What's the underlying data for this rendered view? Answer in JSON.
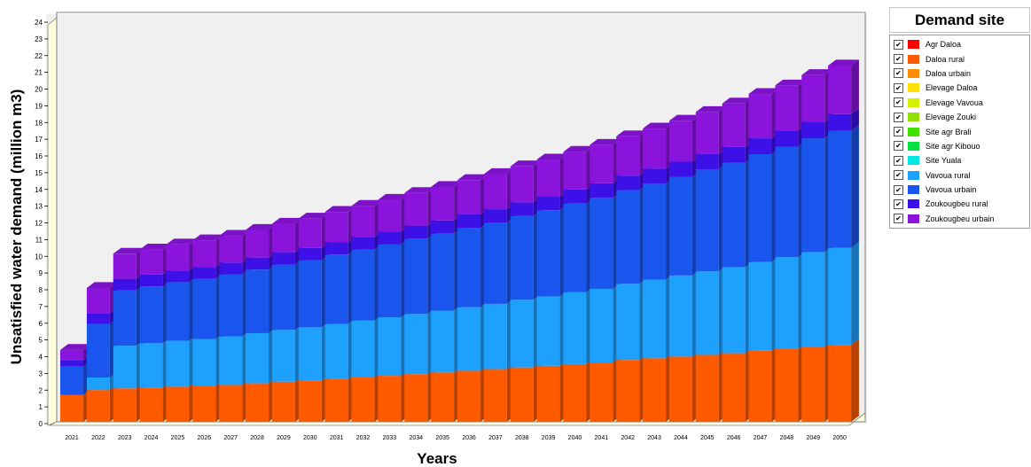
{
  "chart_data": {
    "type": "bar",
    "stacked": true,
    "three_d": true,
    "title": "",
    "xlabel": "Years",
    "ylabel": "Unsatisfied water demand (million m3)",
    "ylim": [
      0,
      24
    ],
    "yticks": [
      0,
      1,
      2,
      3,
      4,
      5,
      6,
      7,
      8,
      9,
      10,
      11,
      12,
      13,
      14,
      15,
      16,
      17,
      18,
      19,
      20,
      21,
      22,
      23,
      24
    ],
    "grid": false,
    "legend_title": "Demand site",
    "legend_position": "right",
    "categories": [
      "2021",
      "2022",
      "2023",
      "2024",
      "2025",
      "2026",
      "2027",
      "2028",
      "2029",
      "2030",
      "2031",
      "2032",
      "2033",
      "2034",
      "2035",
      "2036",
      "2037",
      "2038",
      "2039",
      "2040",
      "2041",
      "2042",
      "2043",
      "2044",
      "2045",
      "2046",
      "2047",
      "2048",
      "2049",
      "2050"
    ],
    "series": [
      {
        "name": "Agr Daloa",
        "color": "#ff0000",
        "values": [
          0,
          0,
          0,
          0,
          0,
          0,
          0,
          0,
          0,
          0,
          0,
          0,
          0,
          0,
          0,
          0,
          0,
          0,
          0,
          0,
          0,
          0,
          0,
          0,
          0,
          0,
          0,
          0,
          0,
          0
        ]
      },
      {
        "name": "Daloa rural",
        "color": "#ff5a00",
        "values": [
          1.6,
          1.9,
          2.0,
          2.05,
          2.1,
          2.15,
          2.2,
          2.3,
          2.4,
          2.45,
          2.55,
          2.65,
          2.75,
          2.85,
          2.95,
          3.05,
          3.15,
          3.25,
          3.35,
          3.45,
          3.55,
          3.7,
          3.8,
          3.9,
          4.0,
          4.1,
          4.25,
          4.35,
          4.5,
          4.6
        ]
      },
      {
        "name": "Daloa urbain",
        "color": "#ff8c00",
        "values": [
          0,
          0,
          0,
          0,
          0,
          0,
          0,
          0,
          0,
          0,
          0,
          0,
          0,
          0,
          0,
          0,
          0,
          0,
          0,
          0,
          0,
          0,
          0,
          0,
          0,
          0,
          0,
          0,
          0,
          0
        ]
      },
      {
        "name": "Elevage Daloa",
        "color": "#ffe000",
        "values": [
          0,
          0,
          0,
          0,
          0,
          0,
          0,
          0,
          0,
          0,
          0,
          0,
          0,
          0,
          0,
          0,
          0,
          0,
          0,
          0,
          0,
          0,
          0,
          0,
          0,
          0,
          0,
          0,
          0,
          0
        ]
      },
      {
        "name": "Elevage Vavoua",
        "color": "#d4f000",
        "values": [
          0,
          0,
          0,
          0,
          0,
          0,
          0,
          0,
          0,
          0,
          0,
          0,
          0,
          0,
          0,
          0,
          0,
          0,
          0,
          0,
          0,
          0,
          0,
          0,
          0,
          0,
          0,
          0,
          0,
          0
        ]
      },
      {
        "name": "Elevage Zouki",
        "color": "#90e000",
        "values": [
          0,
          0,
          0,
          0,
          0,
          0,
          0,
          0,
          0,
          0,
          0,
          0,
          0,
          0,
          0,
          0,
          0,
          0,
          0,
          0,
          0,
          0,
          0,
          0,
          0,
          0,
          0,
          0,
          0,
          0
        ]
      },
      {
        "name": "Site agr Brali",
        "color": "#40e000",
        "values": [
          0,
          0,
          0,
          0,
          0,
          0,
          0,
          0,
          0,
          0,
          0,
          0,
          0,
          0,
          0,
          0,
          0,
          0,
          0,
          0,
          0,
          0,
          0,
          0,
          0,
          0,
          0,
          0,
          0,
          0
        ]
      },
      {
        "name": "Site agr Kibouo",
        "color": "#00e040",
        "values": [
          0,
          0,
          0,
          0,
          0,
          0,
          0,
          0,
          0,
          0,
          0,
          0,
          0,
          0,
          0,
          0,
          0,
          0,
          0,
          0,
          0,
          0,
          0,
          0,
          0,
          0,
          0,
          0,
          0,
          0
        ]
      },
      {
        "name": "Site Yuala",
        "color": "#00e8e0",
        "values": [
          0,
          0,
          0,
          0,
          0,
          0,
          0,
          0,
          0,
          0,
          0,
          0,
          0,
          0,
          0,
          0,
          0,
          0,
          0,
          0,
          0,
          0,
          0,
          0,
          0,
          0,
          0,
          0,
          0,
          0
        ]
      },
      {
        "name": "Vavoua rural",
        "color": "#1ea0ff",
        "values": [
          0,
          0.75,
          2.55,
          2.65,
          2.75,
          2.8,
          2.9,
          3.0,
          3.1,
          3.2,
          3.3,
          3.4,
          3.5,
          3.6,
          3.7,
          3.8,
          3.9,
          4.05,
          4.15,
          4.3,
          4.4,
          4.55,
          4.7,
          4.85,
          5.0,
          5.15,
          5.3,
          5.5,
          5.65,
          5.8
        ]
      },
      {
        "name": "Vavoua urbain",
        "color": "#1a55ee",
        "values": [
          1.7,
          3.2,
          3.3,
          3.4,
          3.5,
          3.6,
          3.7,
          3.8,
          3.9,
          4.0,
          4.15,
          4.25,
          4.35,
          4.5,
          4.6,
          4.75,
          4.85,
          5.0,
          5.15,
          5.3,
          5.45,
          5.6,
          5.75,
          5.9,
          6.1,
          6.25,
          6.45,
          6.6,
          6.8,
          7.0
        ]
      },
      {
        "name": "Zoukougbeu rural",
        "color": "#3d10e8",
        "values": [
          0.4,
          0.65,
          0.7,
          0.7,
          0.7,
          0.7,
          0.72,
          0.72,
          0.74,
          0.75,
          0.75,
          0.76,
          0.77,
          0.78,
          0.79,
          0.8,
          0.81,
          0.82,
          0.83,
          0.84,
          0.86,
          0.87,
          0.88,
          0.9,
          0.92,
          0.93,
          0.95,
          0.96,
          0.98,
          1.0
        ]
      },
      {
        "name": "Zoukougbeu urbain",
        "color": "#8a14dc",
        "values": [
          0.6,
          1.5,
          1.5,
          1.5,
          1.55,
          1.6,
          1.6,
          1.65,
          1.7,
          1.75,
          1.8,
          1.85,
          1.9,
          1.95,
          2.0,
          2.05,
          2.1,
          2.15,
          2.2,
          2.25,
          2.3,
          2.35,
          2.4,
          2.45,
          2.5,
          2.6,
          2.65,
          2.7,
          2.8,
          2.9
        ]
      }
    ]
  }
}
